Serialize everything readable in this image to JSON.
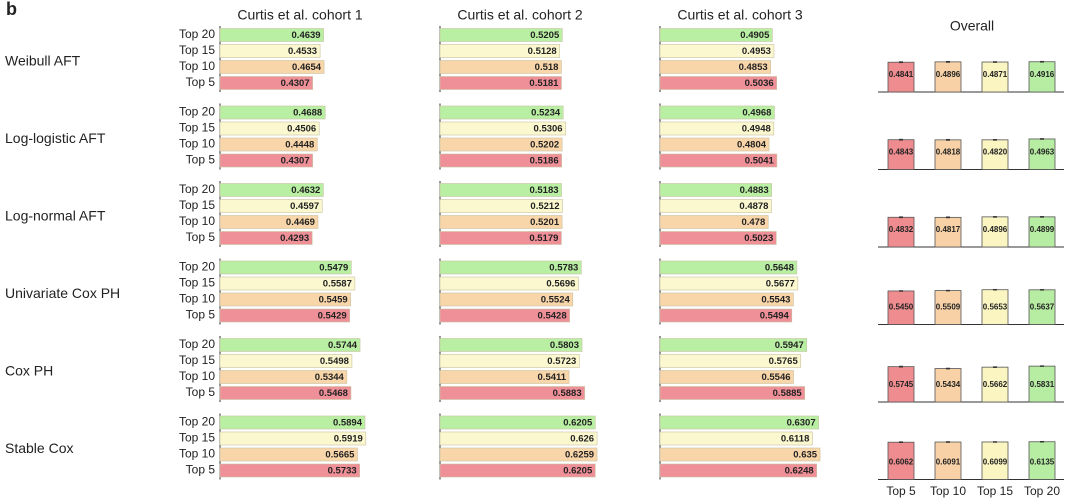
{
  "chart_data": {
    "type": "bargrid",
    "panel_label": "b",
    "columns": [
      "Curtis et al. cohort 1",
      "Curtis et al. cohort 2",
      "Curtis et al. cohort 3"
    ],
    "overall_title": "Overall",
    "row_categories": [
      "Top 20",
      "Top 15",
      "Top 10",
      "Top 5"
    ],
    "row_colors": [
      "#b9efa3",
      "#fbf8cf",
      "#f9d6a9",
      "#ef8f97"
    ],
    "overall_categories": [
      "Top 5",
      "Top 10",
      "Top 15",
      "Top 20"
    ],
    "overall_colors": [
      "#ef8c8f",
      "#f8d2a6",
      "#fbf5c2",
      "#b6eda2"
    ],
    "xlim": [
      0.15,
      0.65
    ],
    "overall_ylim": [
      0,
      0.65
    ],
    "rows": [
      {
        "name": "Weibull AFT",
        "cohorts": [
          [
            0.4639,
            0.4533,
            0.4654,
            0.4307
          ],
          [
            0.5205,
            0.5128,
            0.518,
            0.5181
          ],
          [
            0.4905,
            0.4953,
            0.4853,
            0.5036
          ]
        ],
        "overall": [
          0.4841,
          0.4896,
          0.4871,
          0.4916
        ],
        "overall_errors": [
          0.006,
          0.006,
          0.005,
          0.005
        ]
      },
      {
        "name": "Log-logistic AFT",
        "cohorts": [
          [
            0.4688,
            0.4506,
            0.4448,
            0.4307
          ],
          [
            0.5234,
            0.5306,
            0.5202,
            0.5186
          ],
          [
            0.4968,
            0.4948,
            0.4804,
            0.5041
          ]
        ],
        "overall": [
          0.4843,
          0.4818,
          0.482,
          0.4963
        ],
        "overall_value_labels": [
          "0.4843",
          "0.4818",
          "0.4820",
          "0.4963"
        ],
        "overall_errors": [
          0.006,
          0.006,
          0.005,
          0.005
        ]
      },
      {
        "name": "Log-normal AFT",
        "cohorts": [
          [
            0.4632,
            0.4597,
            0.4469,
            0.4293
          ],
          [
            0.5183,
            0.5212,
            0.5201,
            0.5179
          ],
          [
            0.4883,
            0.4878,
            0.478,
            0.5023
          ]
        ],
        "overall": [
          0.4832,
          0.4817,
          0.4896,
          0.4899
        ],
        "overall_errors": [
          0.006,
          0.006,
          0.005,
          0.005
        ]
      },
      {
        "name": "Univariate Cox PH",
        "cohorts": [
          [
            0.5479,
            0.5587,
            0.5459,
            0.5429
          ],
          [
            0.5783,
            0.5696,
            0.5524,
            0.5428
          ],
          [
            0.5648,
            0.5677,
            0.5543,
            0.5494
          ]
        ],
        "overall": [
          0.545,
          0.5509,
          0.5653,
          0.5637
        ],
        "overall_value_labels": [
          "0.5450",
          "0.5509",
          "0.5653",
          "0.5637"
        ],
        "overall_errors": [
          0.004,
          0.004,
          0.004,
          0.004
        ]
      },
      {
        "name": "Cox PH",
        "cohorts": [
          [
            0.5744,
            0.5498,
            0.5344,
            0.5468
          ],
          [
            0.5803,
            0.5723,
            0.5411,
            0.5883
          ],
          [
            0.5947,
            0.5765,
            0.5546,
            0.5885
          ]
        ],
        "overall": [
          0.5745,
          0.5434,
          0.5662,
          0.5831
        ],
        "overall_errors": [
          0.006,
          0.005,
          0.005,
          0.004
        ]
      },
      {
        "name": "Stable Cox",
        "cohorts": [
          [
            0.5894,
            0.5919,
            0.5665,
            0.5733
          ],
          [
            0.6205,
            0.626,
            0.6259,
            0.6205
          ],
          [
            0.6307,
            0.6118,
            0.635,
            0.6248
          ]
        ],
        "overall": [
          0.6062,
          0.6091,
          0.6099,
          0.6135
        ],
        "overall_errors": [
          0.005,
          0.005,
          0.004,
          0.004
        ]
      }
    ]
  }
}
